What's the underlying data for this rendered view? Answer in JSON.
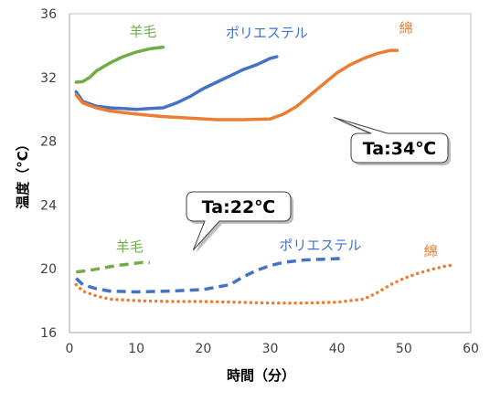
{
  "chart_data": {
    "type": "line",
    "xlabel": "時間（分）",
    "ylabel": "温度（°C）",
    "xlim": [
      0,
      60
    ],
    "ylim": [
      16,
      36
    ],
    "xticks": [
      0,
      10,
      20,
      30,
      40,
      50,
      60
    ],
    "yticks": [
      16,
      20,
      24,
      28,
      32,
      36
    ],
    "grid": false,
    "legend": "none",
    "callouts": [
      {
        "text": "Ta:34℃",
        "anchor": [
          39.5,
          29.5
        ]
      },
      {
        "text": "Ta:22℃",
        "anchor": [
          18.5,
          22.2
        ]
      }
    ],
    "series": [
      {
        "name": "羊毛",
        "condition": "Ta:34℃",
        "style": "solid",
        "color": "#70AD47",
        "label_at": [
          11,
          34.6
        ],
        "x": [
          1,
          2,
          3,
          4,
          6,
          8,
          10,
          12,
          14
        ],
        "y": [
          31.7,
          31.75,
          32.0,
          32.4,
          32.9,
          33.3,
          33.6,
          33.8,
          33.9
        ]
      },
      {
        "name": "ポリエステル",
        "condition": "Ta:34℃",
        "style": "solid",
        "color": "#4472C4",
        "label_at": [
          29.5,
          34.5
        ],
        "x": [
          1,
          2,
          4,
          6,
          8,
          10,
          12,
          14,
          16,
          18,
          20,
          22,
          24,
          26,
          28,
          30,
          31
        ],
        "y": [
          31.1,
          30.5,
          30.2,
          30.1,
          30.05,
          30.0,
          30.05,
          30.1,
          30.4,
          30.8,
          31.3,
          31.7,
          32.1,
          32.5,
          32.8,
          33.2,
          33.3
        ]
      },
      {
        "name": "綿",
        "condition": "Ta:34℃",
        "style": "solid",
        "color": "#ED7D31",
        "label_at": [
          50.3,
          34.8
        ],
        "x": [
          1,
          2,
          4,
          6,
          8,
          10,
          14,
          18,
          22,
          26,
          30,
          32,
          34,
          36,
          38,
          40,
          42,
          44,
          46,
          48,
          49
        ],
        "y": [
          30.9,
          30.4,
          30.1,
          29.9,
          29.8,
          29.7,
          29.55,
          29.45,
          29.35,
          29.35,
          29.4,
          29.7,
          30.2,
          30.9,
          31.6,
          32.3,
          32.8,
          33.2,
          33.5,
          33.7,
          33.7
        ]
      },
      {
        "name": "羊毛",
        "condition": "Ta:22℃",
        "style": "dashed",
        "color": "#70AD47",
        "label_at": [
          9,
          21.1
        ],
        "x": [
          1,
          3,
          5,
          7,
          9,
          11,
          12
        ],
        "y": [
          19.8,
          19.9,
          20.05,
          20.2,
          20.3,
          20.4,
          20.4
        ]
      },
      {
        "name": "ポリエステル",
        "condition": "Ta:22℃",
        "style": "dashed",
        "color": "#4472C4",
        "label_at": [
          37.5,
          21.2
        ],
        "x": [
          1,
          2,
          4,
          6,
          10,
          15,
          20,
          24,
          26,
          28,
          30,
          32,
          35,
          38,
          41
        ],
        "y": [
          19.4,
          19.0,
          18.75,
          18.6,
          18.55,
          18.6,
          18.7,
          19.0,
          19.5,
          19.9,
          20.2,
          20.4,
          20.55,
          20.6,
          20.65
        ]
      },
      {
        "name": "綿",
        "condition": "Ta:22℃",
        "style": "dotted",
        "color": "#ED7D31",
        "label_at": [
          54,
          20.8
        ],
        "x": [
          1,
          2,
          4,
          6,
          10,
          15,
          20,
          25,
          30,
          35,
          40,
          44,
          46,
          48,
          50,
          52,
          54,
          56,
          57.5
        ],
        "y": [
          19.0,
          18.6,
          18.3,
          18.1,
          18.0,
          17.95,
          17.95,
          17.9,
          17.85,
          17.85,
          17.9,
          18.1,
          18.5,
          19.0,
          19.4,
          19.7,
          19.95,
          20.15,
          20.25
        ]
      }
    ]
  }
}
